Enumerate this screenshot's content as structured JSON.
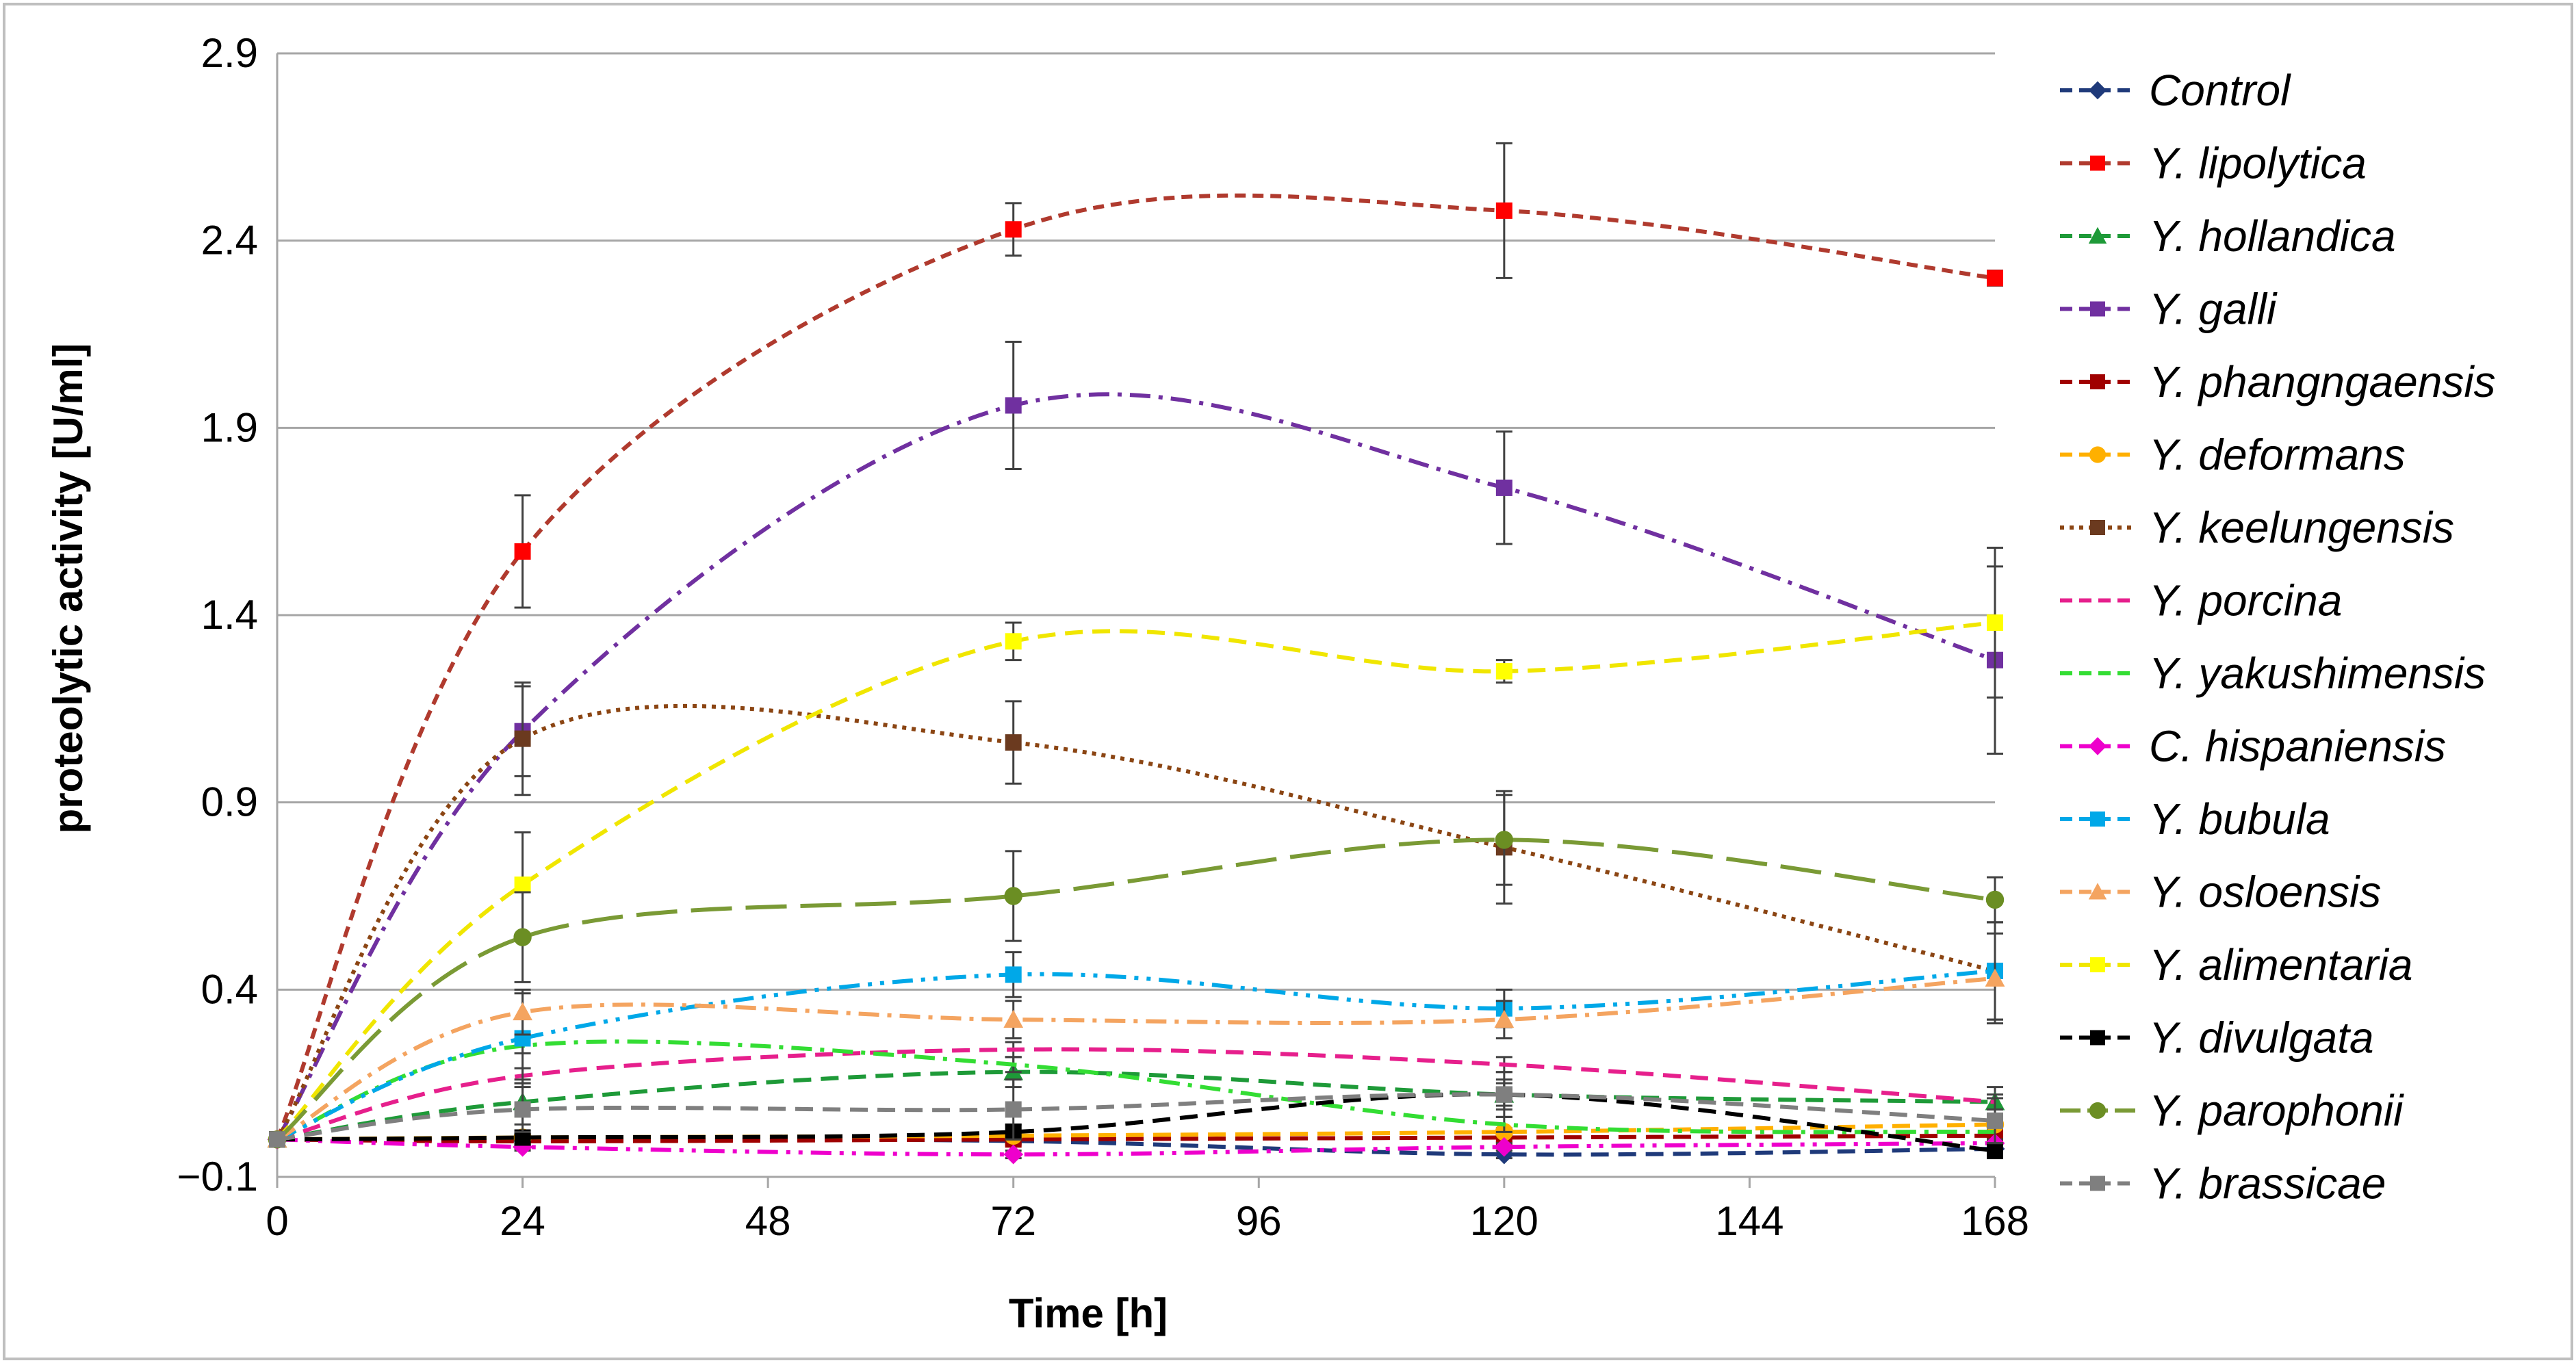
{
  "chart_data": {
    "type": "line",
    "title": "",
    "xlabel": "Time [h]",
    "ylabel": "proteolytic activity [U/ml]",
    "x": [
      0,
      24,
      72,
      120,
      168
    ],
    "xlim": [
      0,
      168
    ],
    "ylim": [
      -0.1,
      2.9
    ],
    "xticks": [
      0,
      24,
      48,
      72,
      96,
      120,
      144,
      168
    ],
    "yticks": [
      -0.1,
      0.4,
      0.9,
      1.4,
      1.9,
      2.4,
      2.9
    ],
    "xtick_labels": [
      "0",
      "24",
      "48",
      "72",
      "96",
      "120",
      "144",
      "168"
    ],
    "ytick_labels": [
      "−0.1",
      "0.4",
      "0.9",
      "1.4",
      "1.9",
      "2.4",
      "2.9"
    ],
    "grid": "horizontal",
    "legend_position": "right",
    "series": [
      {
        "name": "Control",
        "color": "#1f3a7a",
        "marker": "diamond",
        "dash": "dash",
        "values": [
          0,
          -0.002,
          -0.004,
          -0.04,
          -0.025
        ],
        "errors": [
          0,
          0.01,
          0.01,
          0.01,
          0.01
        ]
      },
      {
        "name": "Y. lipolytica",
        "color": "#ff0000",
        "line_color": "#b03a2e",
        "marker": "square",
        "dash": "shortdash",
        "values": [
          0,
          1.57,
          2.43,
          2.48,
          2.3
        ],
        "errors": [
          0,
          0.15,
          0.07,
          0.18,
          0.02
        ]
      },
      {
        "name": "Y. hollandica",
        "color": "#1e9a38",
        "marker": "triangle",
        "dash": "dash",
        "values": [
          0,
          0.1,
          0.18,
          0.12,
          0.1
        ],
        "errors": [
          0,
          0.06,
          0.04,
          0.04,
          0.04
        ]
      },
      {
        "name": "Y. galli",
        "color": "#7030a0",
        "marker": "square",
        "dash": "dashdot",
        "values": [
          0,
          1.09,
          1.96,
          1.74,
          1.28
        ],
        "errors": [
          0,
          0.12,
          0.17,
          0.15,
          0.25
        ]
      },
      {
        "name": "Y. phangngaensis",
        "color": "#a00000",
        "marker": "square",
        "dash": "dash",
        "values": [
          0,
          -0.005,
          0,
          0.005,
          0.01
        ],
        "errors": [
          0,
          0.01,
          0.01,
          0.01,
          0.01
        ]
      },
      {
        "name": "Y. deformans",
        "color": "#ffb000",
        "marker": "circle",
        "dash": "dash",
        "values": [
          0,
          0.005,
          0.01,
          0.02,
          0.04
        ],
        "errors": [
          0,
          0.01,
          0.01,
          0.01,
          0.01
        ]
      },
      {
        "name": "Y. keelungensis",
        "color": "#6b3a1f",
        "line_color": "#8b4513",
        "marker": "square",
        "dash": "dot",
        "values": [
          0,
          1.07,
          1.06,
          0.78,
          0.45
        ],
        "errors": [
          0,
          0.15,
          0.11,
          0.15,
          0.13
        ]
      },
      {
        "name": "Y. porcina",
        "color": "#e61f8c",
        "marker": "none",
        "dash": "dash",
        "values": [
          0,
          0.17,
          0.24,
          0.2,
          0.1
        ],
        "errors": [
          0,
          0.02,
          0.02,
          0.02,
          0.02
        ]
      },
      {
        "name": "Y. yakushimensis",
        "color": "#33dd33",
        "marker": "none",
        "dash": "dashdot",
        "values": [
          0,
          0.25,
          0.2,
          0.04,
          0.02
        ],
        "errors": [
          0,
          0.02,
          0.02,
          0.02,
          0.02
        ]
      },
      {
        "name": "C. hispaniensis",
        "color": "#ee00cc",
        "marker": "diamond",
        "dash": "dashdotdot",
        "values": [
          0,
          -0.02,
          -0.04,
          -0.02,
          -0.01
        ],
        "errors": [
          0,
          0.01,
          0.01,
          0.01,
          0.01
        ]
      },
      {
        "name": "Y. bubula",
        "color": "#00a8e8",
        "marker": "square",
        "dash": "dashdotdot",
        "values": [
          0,
          0.27,
          0.44,
          0.35,
          0.45
        ],
        "errors": [
          0,
          0.12,
          0.06,
          0.05,
          0.13
        ]
      },
      {
        "name": "Y. osloensis",
        "color": "#f4a460",
        "marker": "triangle",
        "dash": "dashdot",
        "values": [
          0,
          0.34,
          0.32,
          0.32,
          0.43
        ],
        "errors": [
          0,
          0.06,
          0.05,
          0.05,
          0.12
        ]
      },
      {
        "name": "Y. alimentaria",
        "color": "#ffff00",
        "line_color": "#f0e600",
        "marker": "square",
        "dash": "dash",
        "values": [
          0,
          0.68,
          1.33,
          1.25,
          1.38
        ],
        "errors": [
          0,
          0.14,
          0.05,
          0.03,
          0.2
        ]
      },
      {
        "name": "Y. divulgata",
        "color": "#000000",
        "marker": "square",
        "dash": "dash",
        "values": [
          0,
          0.005,
          0.02,
          0.12,
          -0.03
        ],
        "errors": [
          0,
          0.01,
          0.02,
          0.03,
          0.02
        ]
      },
      {
        "name": "Y. parophonii",
        "color": "#6b8e23",
        "line_color": "#7a9a35",
        "marker": "circle",
        "dash": "longdash",
        "values": [
          0,
          0.54,
          0.65,
          0.8,
          0.64
        ],
        "errors": [
          0,
          0.12,
          0.12,
          0.12,
          0.06
        ]
      },
      {
        "name": "Y. brassicae",
        "color": "#7f7f7f",
        "marker": "square",
        "dash": "dash",
        "values": [
          0,
          0.08,
          0.08,
          0.12,
          0.05
        ],
        "errors": [
          0,
          0.06,
          0.08,
          0.06,
          0.06
        ]
      }
    ]
  }
}
